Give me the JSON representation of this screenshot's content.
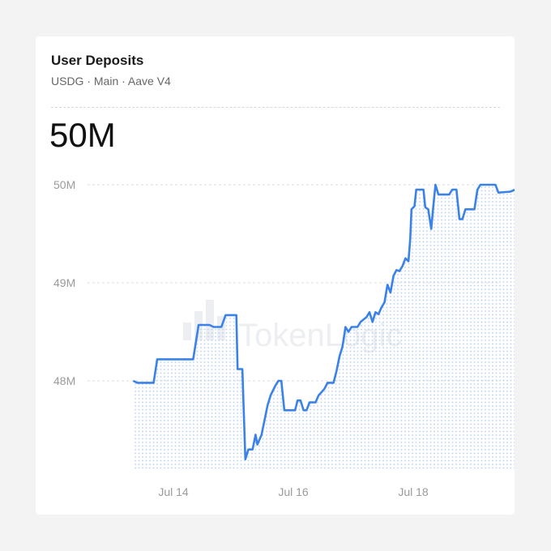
{
  "card": {
    "title": "User Deposits",
    "subtitle": "USDG · Main · Aave V4",
    "value": "50M"
  },
  "watermark": "TokenLogic",
  "colors": {
    "line": "#3b82e8",
    "area_dots": "#b9cff2",
    "grid": "#dedede"
  },
  "chart_data": {
    "type": "area",
    "title": "User Deposits",
    "xlabel": "",
    "ylabel": "",
    "grid": "horizontal dashed",
    "legend": "none",
    "y_ticks": [
      "48M",
      "49M",
      "50M"
    ],
    "x_ticks": [
      "Jul 14",
      "Jul 16",
      "Jul 18"
    ],
    "ylim_millions": [
      47.1,
      50.0
    ],
    "x_unit": "days since Jul 12 00:00",
    "series": [
      {
        "values_millions": [
          [
            1.33,
            48.0
          ],
          [
            1.4,
            47.98
          ],
          [
            1.67,
            47.98
          ],
          [
            1.73,
            48.22
          ],
          [
            2.33,
            48.22
          ],
          [
            2.42,
            48.57
          ],
          [
            2.6,
            48.57
          ],
          [
            2.67,
            48.55
          ],
          [
            2.8,
            48.55
          ],
          [
            2.87,
            48.67
          ],
          [
            3.05,
            48.67
          ],
          [
            3.07,
            48.12
          ],
          [
            3.15,
            48.12
          ],
          [
            3.2,
            47.2
          ],
          [
            3.25,
            47.3
          ],
          [
            3.32,
            47.3
          ],
          [
            3.37,
            47.45
          ],
          [
            3.4,
            47.35
          ],
          [
            3.47,
            47.45
          ],
          [
            3.52,
            47.6
          ],
          [
            3.57,
            47.75
          ],
          [
            3.62,
            47.85
          ],
          [
            3.7,
            47.95
          ],
          [
            3.75,
            48.0
          ],
          [
            3.8,
            48.0
          ],
          [
            3.85,
            47.7
          ],
          [
            4.03,
            47.7
          ],
          [
            4.07,
            47.8
          ],
          [
            4.12,
            47.8
          ],
          [
            4.17,
            47.7
          ],
          [
            4.22,
            47.7
          ],
          [
            4.27,
            47.78
          ],
          [
            4.37,
            47.78
          ],
          [
            4.42,
            47.85
          ],
          [
            4.52,
            47.92
          ],
          [
            4.57,
            47.98
          ],
          [
            4.67,
            47.98
          ],
          [
            4.72,
            48.1
          ],
          [
            4.77,
            48.25
          ],
          [
            4.82,
            48.35
          ],
          [
            4.87,
            48.55
          ],
          [
            4.92,
            48.5
          ],
          [
            4.97,
            48.55
          ],
          [
            5.07,
            48.55
          ],
          [
            5.12,
            48.6
          ],
          [
            5.22,
            48.65
          ],
          [
            5.27,
            48.7
          ],
          [
            5.32,
            48.6
          ],
          [
            5.37,
            48.7
          ],
          [
            5.42,
            48.68
          ],
          [
            5.47,
            48.75
          ],
          [
            5.52,
            48.8
          ],
          [
            5.57,
            48.98
          ],
          [
            5.62,
            48.9
          ],
          [
            5.67,
            49.07
          ],
          [
            5.72,
            49.13
          ],
          [
            5.77,
            49.12
          ],
          [
            5.82,
            49.17
          ],
          [
            5.87,
            49.25
          ],
          [
            5.92,
            49.22
          ],
          [
            5.95,
            49.45
          ],
          [
            5.97,
            49.75
          ],
          [
            6.02,
            49.78
          ],
          [
            6.05,
            49.95
          ],
          [
            6.17,
            49.95
          ],
          [
            6.2,
            49.77
          ],
          [
            6.25,
            49.75
          ],
          [
            6.3,
            49.55
          ],
          [
            6.33,
            49.75
          ],
          [
            6.37,
            50.0
          ],
          [
            6.42,
            49.9
          ],
          [
            6.6,
            49.9
          ],
          [
            6.65,
            49.95
          ],
          [
            6.72,
            49.95
          ],
          [
            6.77,
            49.65
          ],
          [
            6.82,
            49.65
          ],
          [
            6.87,
            49.75
          ],
          [
            7.02,
            49.75
          ],
          [
            7.07,
            49.95
          ],
          [
            7.12,
            50.0
          ],
          [
            7.37,
            50.0
          ],
          [
            7.42,
            49.92
          ],
          [
            7.62,
            49.93
          ],
          [
            7.7,
            49.95
          ],
          [
            7.75,
            50.0
          ],
          [
            7.88,
            50.0
          ]
        ]
      }
    ]
  }
}
